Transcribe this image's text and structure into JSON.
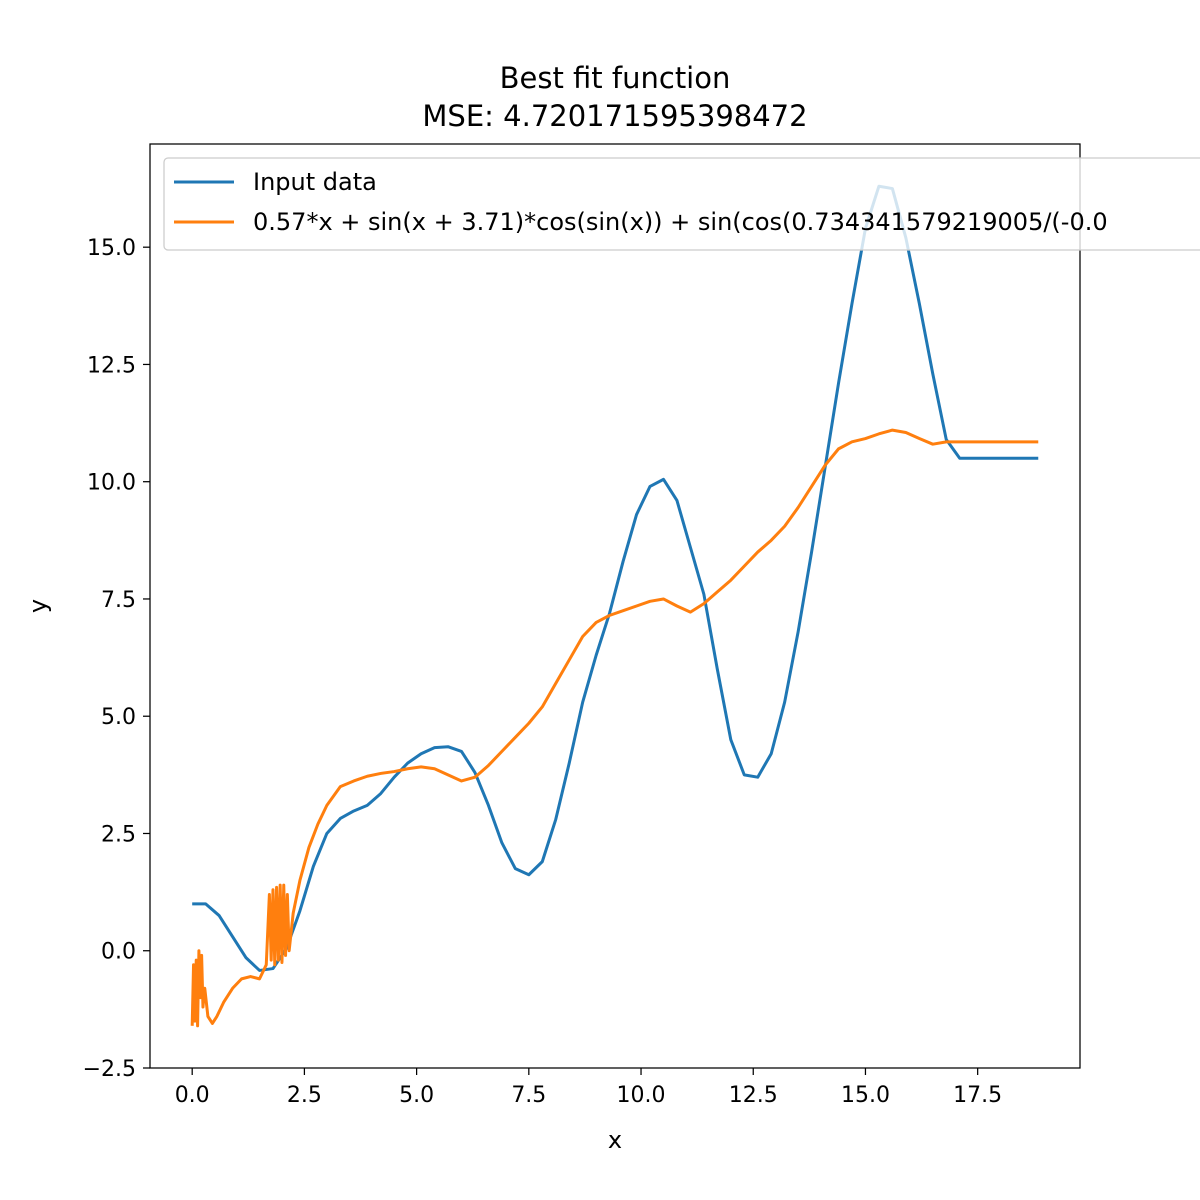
{
  "chart_data": {
    "type": "line",
    "title": "Best fit function",
    "subtitle": "MSE: 4.720171595398472",
    "xlabel": "x",
    "ylabel": "y",
    "xlim": [
      -0.94,
      19.78
    ],
    "ylim": [
      -2.5,
      17.2
    ],
    "xticks": [
      0.0,
      2.5,
      5.0,
      7.5,
      10.0,
      12.5,
      15.0,
      17.5
    ],
    "xtick_labels": [
      "0.0",
      "2.5",
      "5.0",
      "7.5",
      "10.0",
      "12.5",
      "15.0",
      "17.5"
    ],
    "yticks": [
      -2.5,
      0.0,
      2.5,
      5.0,
      7.5,
      10.0,
      12.5,
      15.0
    ],
    "ytick_labels": [
      "−2.5",
      "0.0",
      "2.5",
      "5.0",
      "7.5",
      "10.0",
      "12.5",
      "15.0"
    ],
    "grid": false,
    "legend_position": "top-left",
    "series": [
      {
        "name": "Input data",
        "color": "#1f77b4",
        "x": [
          0.0,
          0.3,
          0.6,
          0.9,
          1.2,
          1.5,
          1.8,
          2.1,
          2.4,
          2.7,
          3.0,
          3.3,
          3.6,
          3.9,
          4.2,
          4.5,
          4.8,
          5.1,
          5.4,
          5.7,
          6.0,
          6.3,
          6.6,
          6.9,
          7.2,
          7.5,
          7.8,
          8.1,
          8.4,
          8.7,
          9.0,
          9.3,
          9.6,
          9.9,
          10.2,
          10.5,
          10.8,
          11.1,
          11.4,
          11.7,
          12.0,
          12.3,
          12.6,
          12.9,
          13.2,
          13.5,
          13.8,
          14.1,
          14.4,
          14.7,
          15.0,
          15.3,
          15.6,
          15.9,
          16.2,
          16.5,
          16.8,
          17.1,
          17.4,
          17.7,
          18.0,
          18.3,
          18.6,
          18.85
        ],
        "y": [
          1.0,
          1.0,
          0.75,
          0.3,
          -0.15,
          -0.42,
          -0.38,
          0.05,
          0.85,
          1.8,
          2.5,
          2.82,
          2.98,
          3.1,
          3.35,
          3.7,
          4.0,
          4.2,
          4.33,
          4.35,
          4.25,
          3.8,
          3.1,
          2.3,
          1.75,
          1.62,
          1.9,
          2.8,
          4.0,
          5.3,
          6.3,
          7.2,
          8.3,
          9.3,
          9.9,
          10.05,
          9.6,
          8.6,
          7.6,
          6.0,
          4.5,
          3.75,
          3.7,
          4.2,
          5.3,
          6.8,
          8.5,
          10.3,
          12.1,
          13.8,
          15.4,
          16.3,
          16.25,
          15.2,
          13.8,
          12.3,
          10.9,
          10.5,
          10.5,
          10.5,
          10.5,
          10.5,
          10.5,
          10.5
        ]
      },
      {
        "name": "0.57*x + sin(x + 3.71)*cos(sin(x)) + sin(cos(0.734341579219005/(-0.0",
        "color": "#ff7f0e",
        "x": [
          0.0,
          0.03,
          0.06,
          0.09,
          0.12,
          0.15,
          0.18,
          0.21,
          0.24,
          0.28,
          0.35,
          0.45,
          0.55,
          0.7,
          0.9,
          1.1,
          1.3,
          1.5,
          1.65,
          1.72,
          1.76,
          1.8,
          1.84,
          1.88,
          1.92,
          1.96,
          2.0,
          2.04,
          2.08,
          2.12,
          2.16,
          2.25,
          2.4,
          2.6,
          2.8,
          3.0,
          3.3,
          3.6,
          3.9,
          4.2,
          4.5,
          4.8,
          5.1,
          5.4,
          5.7,
          6.0,
          6.3,
          6.6,
          6.9,
          7.2,
          7.5,
          7.8,
          8.1,
          8.4,
          8.7,
          9.0,
          9.3,
          9.6,
          9.9,
          10.2,
          10.5,
          10.8,
          11.1,
          11.4,
          11.7,
          12.0,
          12.3,
          12.6,
          12.9,
          13.2,
          13.5,
          13.8,
          14.1,
          14.4,
          14.7,
          15.0,
          15.3,
          15.6,
          15.9,
          16.2,
          16.5,
          16.8,
          17.1,
          17.4,
          17.7,
          18.0,
          18.3,
          18.6,
          18.85
        ],
        "y": [
          -1.6,
          -0.3,
          -1.5,
          -0.2,
          -1.6,
          0.0,
          -1.0,
          -0.1,
          -1.2,
          -0.8,
          -1.4,
          -1.55,
          -1.4,
          -1.1,
          -0.8,
          -0.6,
          -0.55,
          -0.6,
          -0.3,
          1.2,
          -0.2,
          1.3,
          -0.3,
          1.35,
          -0.2,
          1.4,
          -0.25,
          1.4,
          -0.1,
          1.2,
          0.0,
          0.8,
          1.5,
          2.2,
          2.7,
          3.1,
          3.5,
          3.62,
          3.72,
          3.78,
          3.82,
          3.88,
          3.92,
          3.88,
          3.75,
          3.62,
          3.7,
          3.95,
          4.25,
          4.55,
          4.85,
          5.2,
          5.7,
          6.2,
          6.7,
          7.0,
          7.15,
          7.25,
          7.35,
          7.45,
          7.5,
          7.35,
          7.22,
          7.4,
          7.65,
          7.9,
          8.2,
          8.5,
          8.75,
          9.05,
          9.45,
          9.9,
          10.35,
          10.7,
          10.85,
          10.92,
          11.02,
          11.1,
          11.05,
          10.92,
          10.8,
          10.85,
          10.85,
          10.85,
          10.85,
          10.85,
          10.85,
          10.85,
          10.85
        ]
      }
    ]
  }
}
